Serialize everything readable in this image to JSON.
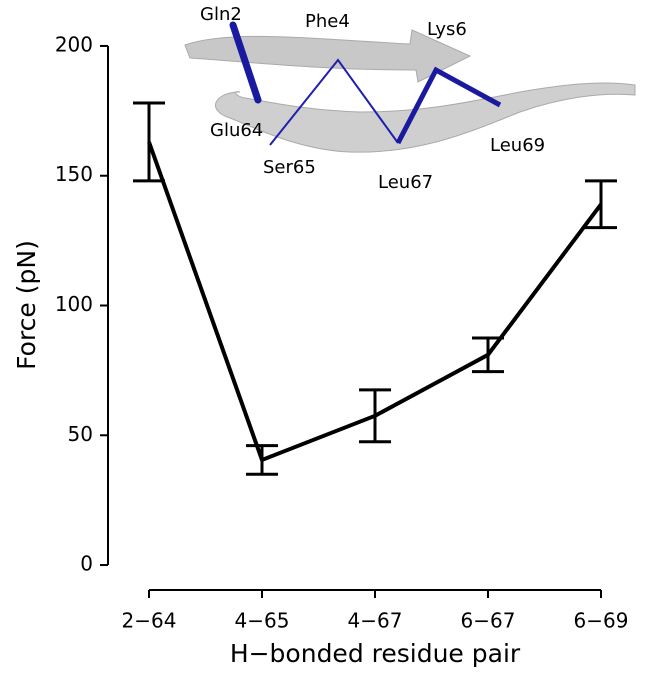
{
  "chart_data": {
    "type": "line",
    "categories": [
      "2−64",
      "4−65",
      "4−67",
      "6−67",
      "6−69"
    ],
    "values": [
      163,
      40.5,
      57.5,
      81,
      139
    ],
    "errors": [
      15,
      5.5,
      10,
      6.5,
      9
    ],
    "color": "#000000",
    "ylim": [
      -10,
      210
    ],
    "yticks": [
      0,
      50,
      100,
      150,
      200
    ],
    "y_label": "Force (pN)",
    "x_label": "H−bonded residue pair",
    "annotations": [
      "Gln2",
      "Phe4",
      "Lys6",
      "Glu64",
      "Ser65",
      "Leu67",
      "Leu69"
    ]
  }
}
